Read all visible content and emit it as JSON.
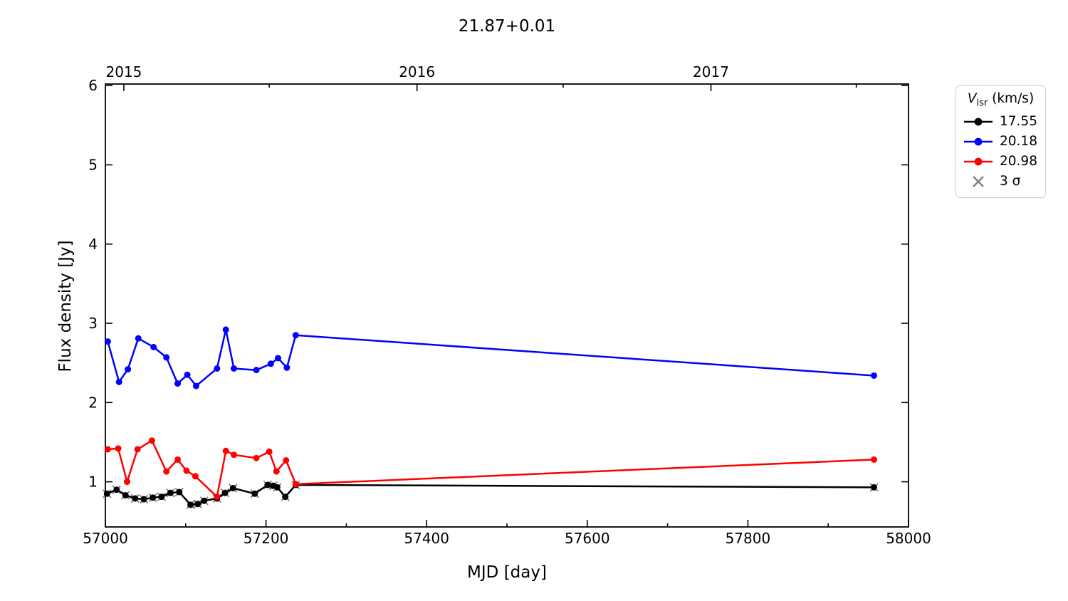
{
  "title": "21.87+0.01",
  "chart_data": {
    "type": "line",
    "title": "21.87+0.01",
    "xlabel": "MJD [day]",
    "ylabel": "Flux density [Jy]",
    "xlim": [
      57000,
      58000
    ],
    "ylim": [
      0.43,
      6.02
    ],
    "grid": false,
    "x_major_ticks": [
      {
        "v": 57000,
        "label": "57000"
      },
      {
        "v": 57200,
        "label": "57200"
      },
      {
        "v": 57400,
        "label": "57400"
      },
      {
        "v": 57600,
        "label": "57600"
      },
      {
        "v": 57800,
        "label": "57800"
      },
      {
        "v": 58000,
        "label": "58000"
      }
    ],
    "x_minor_ticks": [
      57100,
      57300,
      57500,
      57700,
      57900
    ],
    "y_major_ticks": [
      {
        "v": 1,
        "label": "1"
      },
      {
        "v": 2,
        "label": "2"
      },
      {
        "v": 3,
        "label": "3"
      },
      {
        "v": 4,
        "label": "4"
      },
      {
        "v": 5,
        "label": "5"
      },
      {
        "v": 6,
        "label": "6"
      }
    ],
    "top_axis_year_ticks": [
      {
        "v": 57023,
        "label": "2015"
      },
      {
        "v": 57388,
        "label": "2016"
      },
      {
        "v": 57754,
        "label": "2017"
      }
    ],
    "top_axis_minor_ticks": [
      57204,
      57570,
      57935
    ],
    "series": [
      {
        "name": "3 sigma",
        "color": "#7f7f7f",
        "marker": "x",
        "line": false,
        "points": [
          [
            57002,
            0.85
          ],
          [
            57014,
            0.9
          ],
          [
            57025,
            0.83
          ],
          [
            57037,
            0.79
          ],
          [
            57048,
            0.78
          ],
          [
            57059,
            0.8
          ],
          [
            57070,
            0.81
          ],
          [
            57081,
            0.86
          ],
          [
            57092,
            0.87
          ],
          [
            57106,
            0.71
          ],
          [
            57115,
            0.72
          ],
          [
            57123,
            0.76
          ],
          [
            57139,
            0.79
          ],
          [
            57149,
            0.86
          ],
          [
            57159,
            0.92
          ],
          [
            57186,
            0.85
          ],
          [
            57202,
            0.96
          ],
          [
            57209,
            0.95
          ],
          [
            57214,
            0.93
          ],
          [
            57224,
            0.81
          ],
          [
            57237,
            0.96
          ],
          [
            57957,
            0.93
          ]
        ]
      },
      {
        "name": "17.55",
        "color": "#000000",
        "marker": "circle",
        "line": true,
        "points": [
          [
            57002,
            0.85
          ],
          [
            57014,
            0.9
          ],
          [
            57025,
            0.83
          ],
          [
            57037,
            0.79
          ],
          [
            57048,
            0.78
          ],
          [
            57059,
            0.8
          ],
          [
            57070,
            0.81
          ],
          [
            57081,
            0.86
          ],
          [
            57092,
            0.87
          ],
          [
            57106,
            0.71
          ],
          [
            57115,
            0.72
          ],
          [
            57123,
            0.76
          ],
          [
            57139,
            0.79
          ],
          [
            57149,
            0.86
          ],
          [
            57159,
            0.92
          ],
          [
            57186,
            0.85
          ],
          [
            57202,
            0.96
          ],
          [
            57209,
            0.95
          ],
          [
            57214,
            0.93
          ],
          [
            57224,
            0.81
          ],
          [
            57237,
            0.96
          ],
          [
            57957,
            0.93
          ]
        ]
      },
      {
        "name": "20.18",
        "color": "#0000ff",
        "marker": "circle",
        "line": true,
        "points": [
          [
            57003,
            2.77
          ],
          [
            57017,
            2.26
          ],
          [
            57028,
            2.42
          ],
          [
            57041,
            2.81
          ],
          [
            57060,
            2.7
          ],
          [
            57076,
            2.57
          ],
          [
            57090,
            2.24
          ],
          [
            57102,
            2.35
          ],
          [
            57113,
            2.21
          ],
          [
            57139,
            2.43
          ],
          [
            57150,
            2.92
          ],
          [
            57160,
            2.43
          ],
          [
            57188,
            2.41
          ],
          [
            57206,
            2.49
          ],
          [
            57215,
            2.56
          ],
          [
            57226,
            2.44
          ],
          [
            57237,
            2.85
          ],
          [
            57957,
            2.34
          ]
        ]
      },
      {
        "name": "20.98",
        "color": "#ff0000",
        "marker": "circle",
        "line": true,
        "points": [
          [
            57003,
            1.41
          ],
          [
            57016,
            1.42
          ],
          [
            57027,
            1.0
          ],
          [
            57040,
            1.41
          ],
          [
            57058,
            1.52
          ],
          [
            57076,
            1.13
          ],
          [
            57090,
            1.28
          ],
          [
            57101,
            1.14
          ],
          [
            57112,
            1.07
          ],
          [
            57139,
            0.81
          ],
          [
            57150,
            1.39
          ],
          [
            57160,
            1.34
          ],
          [
            57188,
            1.3
          ],
          [
            57204,
            1.38
          ],
          [
            57213,
            1.13
          ],
          [
            57225,
            1.27
          ],
          [
            57237,
            0.97
          ],
          [
            57957,
            1.28
          ]
        ]
      }
    ],
    "legend": {
      "position": "outside-upper-right",
      "title_v": "V",
      "title_sub": "lsr",
      "title_rest": " (km/s)",
      "entries": [
        {
          "label": "17.55",
          "color": "#000000",
          "marker": "line-circle"
        },
        {
          "label": "20.18",
          "color": "#0000ff",
          "marker": "line-circle"
        },
        {
          "label": "20.98",
          "color": "#ff0000",
          "marker": "line-circle"
        },
        {
          "label": "3 σ",
          "color": "#7f7f7f",
          "marker": "x"
        }
      ]
    }
  }
}
